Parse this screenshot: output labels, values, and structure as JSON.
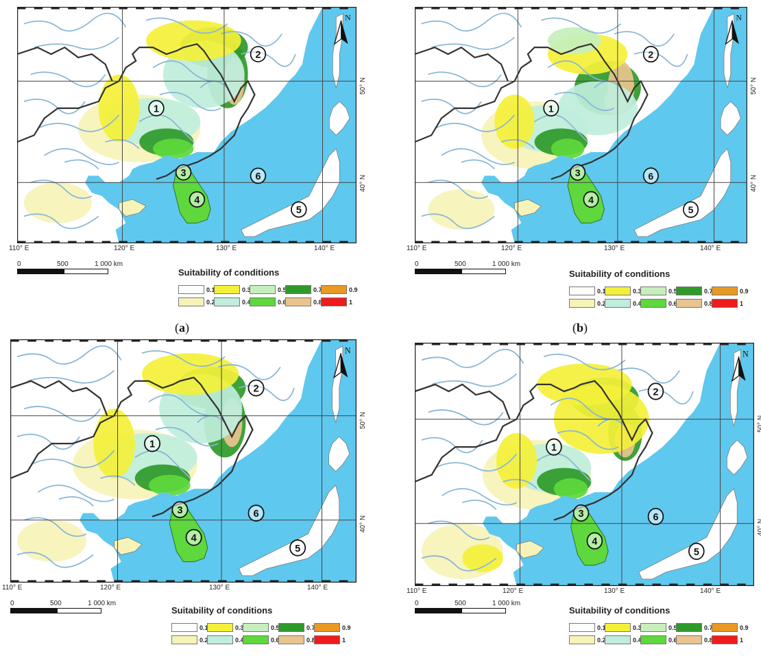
{
  "panels": [
    {
      "label_open": "(",
      "label_letter": "a",
      "label_close": ")"
    },
    {
      "label_open": "(",
      "label_letter": "b",
      "label_close": ")"
    },
    {
      "label_open": "",
      "label_letter": "",
      "label_close": ""
    },
    {
      "label_open": "",
      "label_letter": "",
      "label_close": ""
    }
  ],
  "longitude_labels": [
    "110° E",
    "120° E",
    "130° E",
    "140° E"
  ],
  "latitude_labels": [
    "50° N",
    "40° N"
  ],
  "north_arrow": "N",
  "region_markers": [
    "1",
    "2",
    "3",
    "4",
    "5",
    "6"
  ],
  "scale": {
    "zero": "0",
    "mid": "500",
    "end": "1 000 km"
  },
  "legend": {
    "title": "Suitability of conditions",
    "classes": [
      {
        "label": "0.1",
        "color": "#ffffff"
      },
      {
        "label": "0.2",
        "color": "#f6f3b8"
      },
      {
        "label": "0.3",
        "color": "#f4f03a"
      },
      {
        "label": "0.4",
        "color": "#bfeedc"
      },
      {
        "label": "0.5",
        "color": "#c6efbd"
      },
      {
        "label": "0.6",
        "color": "#5ed83c"
      },
      {
        "label": "0.7",
        "color": "#2e9a2a"
      },
      {
        "label": "0.8",
        "color": "#e9c48e"
      },
      {
        "label": "0.9",
        "color": "#e89a24"
      },
      {
        "label": "1",
        "color": "#ee1c1c"
      }
    ]
  },
  "colors": {
    "sea": "#5fc8ee",
    "land": "#ffffff",
    "river": "#8ab6d6",
    "border": "#333333",
    "grid": "#444444"
  }
}
